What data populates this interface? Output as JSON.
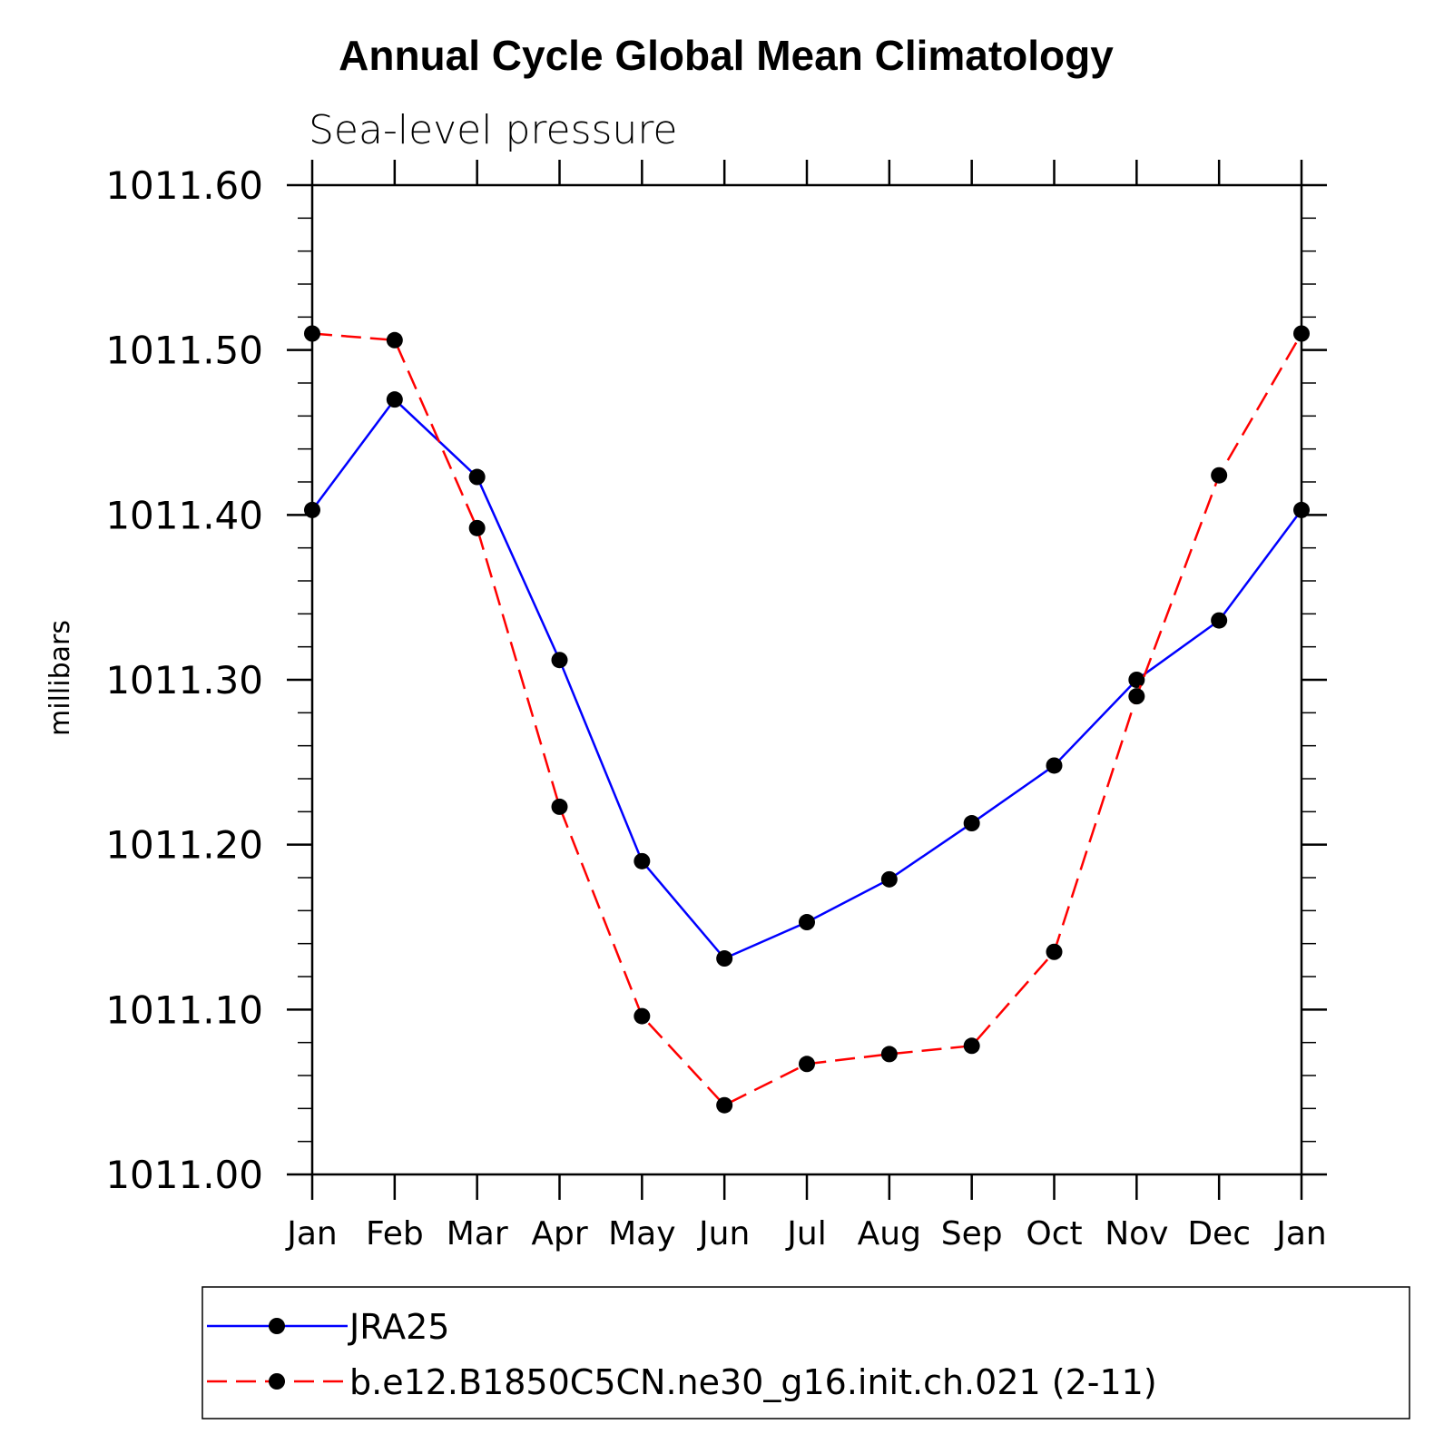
{
  "chart_data": {
    "type": "line",
    "title": "Annual Cycle Global Mean Climatology",
    "subtitle": "Sea-level pressure",
    "xlabel": "",
    "ylabel": "millibars",
    "categories": [
      "Jan",
      "Feb",
      "Mar",
      "Apr",
      "May",
      "Jun",
      "Jul",
      "Aug",
      "Sep",
      "Oct",
      "Nov",
      "Dec",
      "Jan"
    ],
    "ylim": [
      1011.0,
      1011.6
    ],
    "yticks": [
      "1011.00",
      "1011.10",
      "1011.20",
      "1011.30",
      "1011.40",
      "1011.50",
      "1011.60"
    ],
    "ytick_values": [
      1011.0,
      1011.1,
      1011.2,
      1011.3,
      1011.4,
      1011.5,
      1011.6
    ],
    "grid": false,
    "legend_position": "bottom",
    "series": [
      {
        "name": "JRA25",
        "color": "#0000ff",
        "dash": "solid",
        "values": [
          1011.403,
          1011.47,
          1011.423,
          1011.312,
          1011.19,
          1011.131,
          1011.153,
          1011.179,
          1011.213,
          1011.248,
          1011.3,
          1011.336,
          1011.403
        ]
      },
      {
        "name": "b.e12.B1850C5CN.ne30_g16.init.ch.021 (2-11)",
        "color": "#ff0000",
        "dash": "dashed",
        "values": [
          1011.51,
          1011.506,
          1011.392,
          1011.223,
          1011.096,
          1011.042,
          1011.067,
          1011.073,
          1011.078,
          1011.135,
          1011.29,
          1011.424,
          1011.51
        ]
      }
    ]
  }
}
